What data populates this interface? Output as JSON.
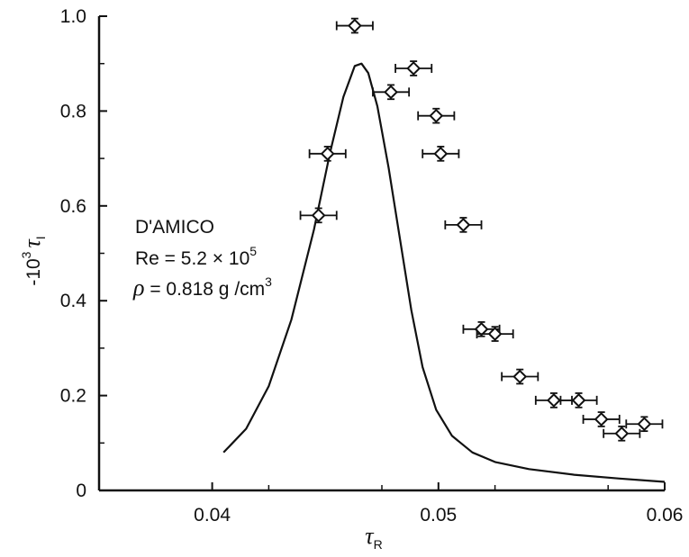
{
  "chart_data": {
    "type": "scatter",
    "xlabel": "τ",
    "xlabel_sub": "R",
    "ylabel_prefix": "-10",
    "ylabel_exp": "3",
    "ylabel_sym": "τ",
    "ylabel_sub": "I",
    "xlim": [
      0.035,
      0.06
    ],
    "ylim": [
      0,
      1.0
    ],
    "x_ticks": [
      {
        "value": 0.04,
        "label": "0.04"
      },
      {
        "value": 0.05,
        "label": "0.05"
      },
      {
        "value": 0.06,
        "label": "0.06"
      }
    ],
    "y_ticks": [
      {
        "value": 0,
        "label": "0"
      },
      {
        "value": 0.2,
        "label": "0.2"
      },
      {
        "value": 0.4,
        "label": "0.4"
      },
      {
        "value": 0.6,
        "label": "0.6"
      },
      {
        "value": 0.8,
        "label": "0.8"
      },
      {
        "value": 1.0,
        "label": "1.0"
      }
    ],
    "annotation": {
      "line1": "D'AMICO",
      "line2_prefix": "Re = 5.2 × 10",
      "line2_exp": "5",
      "line3_sym": "ρ",
      "line3_text": " = 0.818 g /cm",
      "line3_exp": "3"
    },
    "series": [
      {
        "type": "scatter",
        "marker": "open-diamond",
        "x_error": 0.0008,
        "y_error": 0.015,
        "points": [
          {
            "x": 0.0463,
            "y": 0.98
          },
          {
            "x": 0.0489,
            "y": 0.89
          },
          {
            "x": 0.0479,
            "y": 0.84
          },
          {
            "x": 0.0499,
            "y": 0.79
          },
          {
            "x": 0.0451,
            "y": 0.71
          },
          {
            "x": 0.0501,
            "y": 0.71
          },
          {
            "x": 0.0447,
            "y": 0.58
          },
          {
            "x": 0.0511,
            "y": 0.56
          },
          {
            "x": 0.0519,
            "y": 0.34
          },
          {
            "x": 0.0525,
            "y": 0.33
          },
          {
            "x": 0.0536,
            "y": 0.24
          },
          {
            "x": 0.0551,
            "y": 0.19
          },
          {
            "x": 0.0562,
            "y": 0.19
          },
          {
            "x": 0.0572,
            "y": 0.15
          },
          {
            "x": 0.0591,
            "y": 0.14
          },
          {
            "x": 0.0581,
            "y": 0.12
          }
        ]
      },
      {
        "type": "line",
        "points": [
          [
            0.0405,
            0.08
          ],
          [
            0.0415,
            0.13
          ],
          [
            0.0425,
            0.22
          ],
          [
            0.0435,
            0.36
          ],
          [
            0.0445,
            0.55
          ],
          [
            0.0452,
            0.71
          ],
          [
            0.0458,
            0.83
          ],
          [
            0.0463,
            0.895
          ],
          [
            0.0466,
            0.9
          ],
          [
            0.0469,
            0.88
          ],
          [
            0.0473,
            0.81
          ],
          [
            0.0478,
            0.68
          ],
          [
            0.0483,
            0.53
          ],
          [
            0.0488,
            0.38
          ],
          [
            0.0493,
            0.26
          ],
          [
            0.0499,
            0.17
          ],
          [
            0.0506,
            0.115
          ],
          [
            0.0515,
            0.08
          ],
          [
            0.0525,
            0.06
          ],
          [
            0.054,
            0.045
          ],
          [
            0.056,
            0.033
          ],
          [
            0.058,
            0.025
          ],
          [
            0.06,
            0.018
          ]
        ]
      }
    ]
  }
}
